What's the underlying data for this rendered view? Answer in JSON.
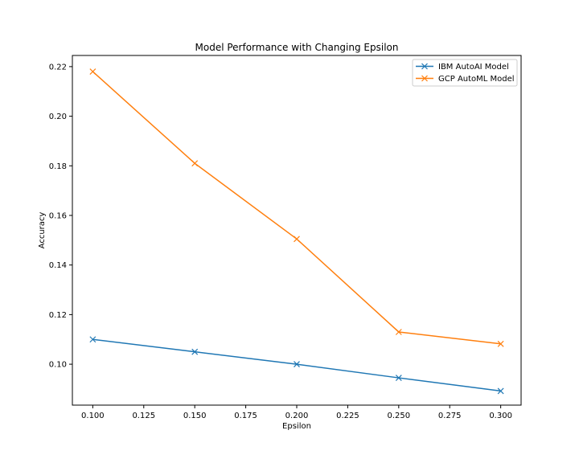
{
  "chart_data": {
    "type": "line",
    "title": "Model Performance with Changing Epsilon",
    "xlabel": "Epsilon",
    "ylabel": "Accuracy",
    "x": [
      0.1,
      0.15,
      0.2,
      0.25,
      0.3
    ],
    "xlim": [
      0.09,
      0.31
    ],
    "ylim": [
      0.0835,
      0.2245
    ],
    "xticks": [
      "0.100",
      "0.125",
      "0.150",
      "0.175",
      "0.200",
      "0.225",
      "0.250",
      "0.275",
      "0.300"
    ],
    "yticks": [
      "0.10",
      "0.12",
      "0.14",
      "0.16",
      "0.18",
      "0.20",
      "0.22"
    ],
    "grid": false,
    "legend_position": "top-right",
    "series": [
      {
        "name": "IBM AutoAI Model",
        "color": "#1f77b4",
        "marker": "x",
        "values": [
          0.11,
          0.105,
          0.1,
          0.0945,
          0.0892
        ]
      },
      {
        "name": "GCP AutoML Model",
        "color": "#ff7f0e",
        "marker": "x",
        "values": [
          0.218,
          0.181,
          0.1505,
          0.113,
          0.1082
        ]
      }
    ]
  }
}
